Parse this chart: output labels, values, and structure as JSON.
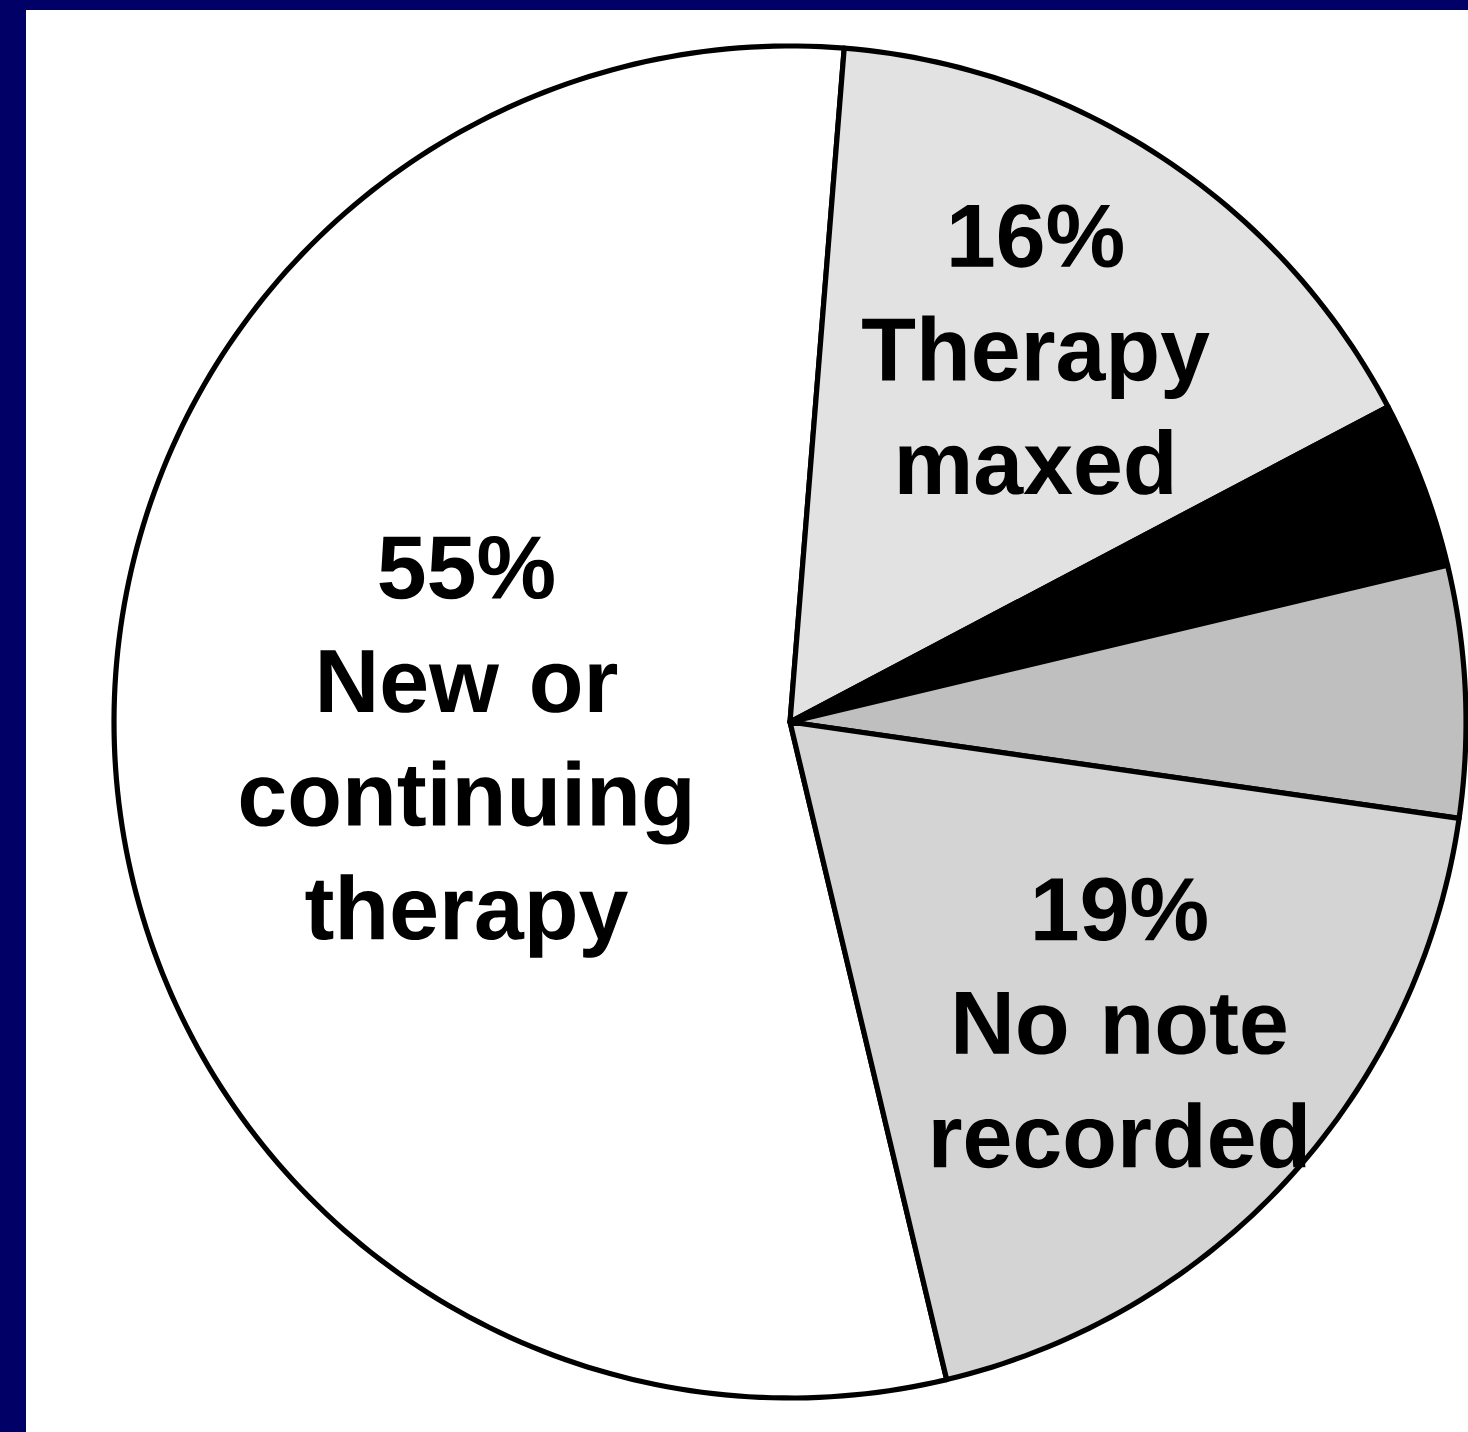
{
  "chart_data": {
    "type": "pie",
    "categories": [
      "New or continuing therapy",
      "Therapy maxed",
      null,
      null,
      "No note recorded"
    ],
    "values": [
      55,
      16,
      4,
      6,
      19
    ],
    "colors": [
      "#ffffff",
      "#e2e2e2",
      "#000000",
      "#bfbfbf",
      "#d4d4d4"
    ],
    "value_labels": [
      "55%",
      "16%",
      null,
      null,
      "19%"
    ]
  }
}
